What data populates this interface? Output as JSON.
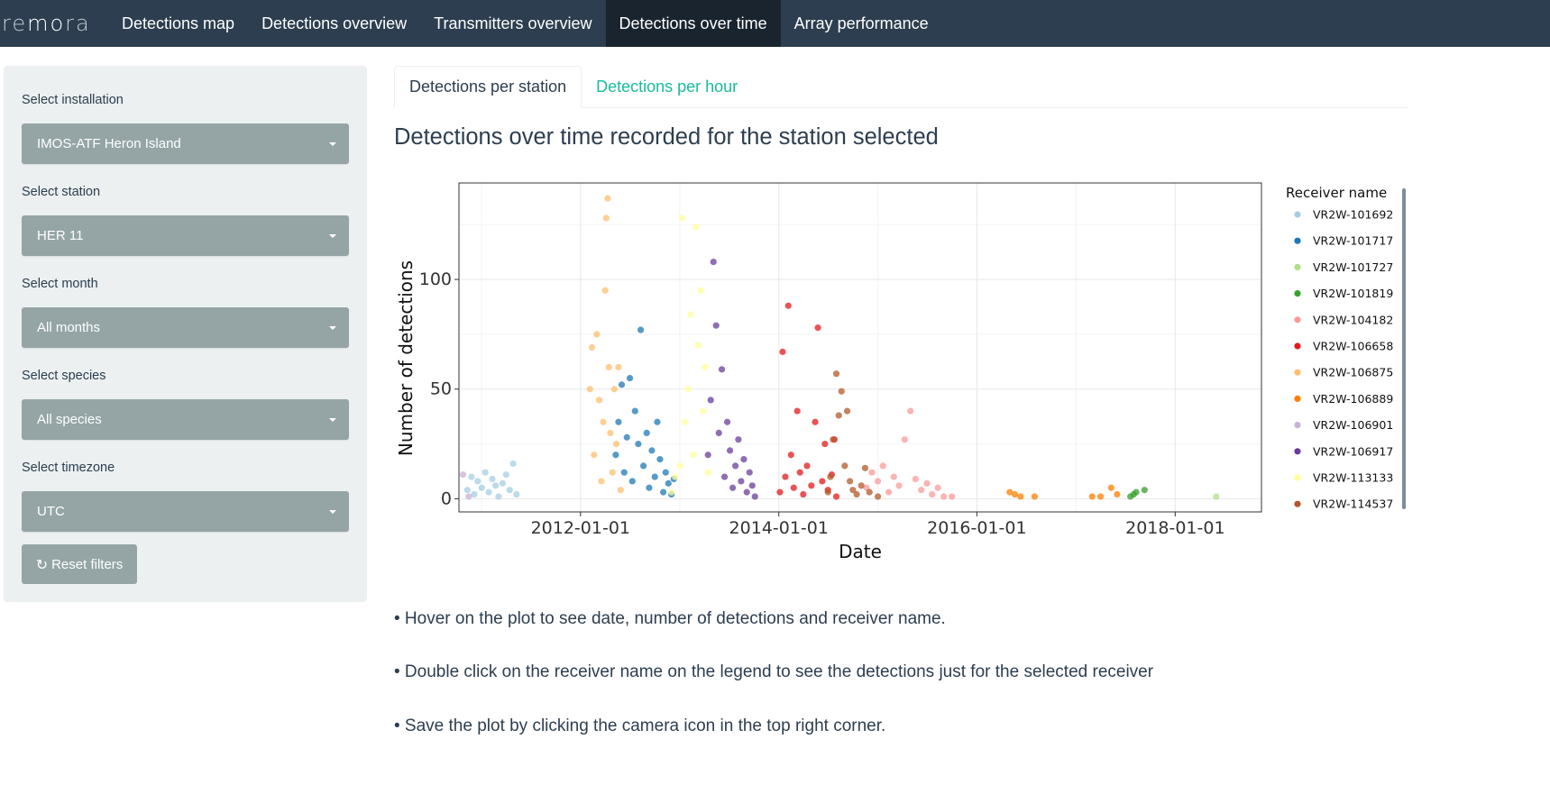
{
  "navbar": {
    "brand_light": "re",
    "brand_bold": "mo",
    "brand_tail": "ra",
    "items": [
      "Detections map",
      "Detections overview",
      "Transmitters overview",
      "Detections over time",
      "Array performance"
    ],
    "active_index": 3
  },
  "sidebar": {
    "fields": [
      {
        "label": "Select installation",
        "value": "IMOS-ATF Heron Island"
      },
      {
        "label": "Select station",
        "value": "HER 11"
      },
      {
        "label": "Select month",
        "value": "All months"
      },
      {
        "label": "Select species",
        "value": "All species"
      },
      {
        "label": "Select timezone",
        "value": "UTC"
      }
    ],
    "reset_label": "Reset filters",
    "reset_icon": "refresh-icon"
  },
  "tabs": [
    {
      "label": "Detections per station",
      "active": true
    },
    {
      "label": "Detections per hour",
      "active": false
    }
  ],
  "page_title": "Detections over time recorded for the station selected",
  "notes": [
    "• Hover on the plot to see date, number of detections and receiver name.",
    "• Double click on the receiver name on the legend to see the detections just for the selected receiver",
    "• Save the plot by clicking the camera icon in the top right corner."
  ],
  "colors": {
    "navbar": "#2c3e50",
    "active_nav": "#1a242f",
    "accent": "#18bc9c",
    "select": "#95a5a6"
  },
  "chart_data": {
    "type": "scatter",
    "xlabel": "Date",
    "ylabel": "Number of detections",
    "x_ticks": [
      "2012-01-01",
      "2014-01-01",
      "2016-01-01",
      "2018-01-01"
    ],
    "y_ticks": [
      0,
      50,
      100
    ],
    "xlim": [
      "2010-10-10",
      "2018-11-15"
    ],
    "ylim": [
      -6,
      144
    ],
    "grid": true,
    "legend_title": "Receiver name",
    "legend_position": "right",
    "series": [
      {
        "name": "VR2W-101692",
        "color": "#a6cee3",
        "points": [
          [
            "2010-11-10",
            4
          ],
          [
            "2010-11-25",
            10
          ],
          [
            "2010-12-05",
            2
          ],
          [
            "2010-12-18",
            8
          ],
          [
            "2011-01-02",
            5
          ],
          [
            "2011-01-15",
            12
          ],
          [
            "2011-01-28",
            3
          ],
          [
            "2011-02-10",
            9
          ],
          [
            "2011-02-22",
            6
          ],
          [
            "2011-03-05",
            1
          ],
          [
            "2011-03-20",
            7
          ],
          [
            "2011-04-02",
            11
          ],
          [
            "2011-04-15",
            4
          ],
          [
            "2011-04-28",
            16
          ],
          [
            "2011-05-10",
            2
          ]
        ]
      },
      {
        "name": "VR2W-101717",
        "color": "#1f78b4",
        "points": [
          [
            "2012-05-10",
            20
          ],
          [
            "2012-05-20",
            35
          ],
          [
            "2012-06-01",
            52
          ],
          [
            "2012-06-10",
            12
          ],
          [
            "2012-06-20",
            28
          ],
          [
            "2012-07-01",
            55
          ],
          [
            "2012-07-10",
            8
          ],
          [
            "2012-07-20",
            40
          ],
          [
            "2012-08-01",
            25
          ],
          [
            "2012-08-10",
            77
          ],
          [
            "2012-08-20",
            15
          ],
          [
            "2012-09-01",
            30
          ],
          [
            "2012-09-10",
            5
          ],
          [
            "2012-09-20",
            22
          ],
          [
            "2012-10-01",
            10
          ],
          [
            "2012-10-10",
            35
          ],
          [
            "2012-10-20",
            18
          ],
          [
            "2012-11-01",
            3
          ],
          [
            "2012-11-10",
            12
          ],
          [
            "2012-11-20",
            7
          ],
          [
            "2012-12-01",
            2
          ],
          [
            "2012-12-10",
            9
          ]
        ]
      },
      {
        "name": "VR2W-101727",
        "color": "#b2df8a",
        "points": [
          [
            "2018-06-01",
            1
          ]
        ]
      },
      {
        "name": "VR2W-101819",
        "color": "#33a02c",
        "points": [
          [
            "2017-07-20",
            1
          ],
          [
            "2017-08-01",
            2
          ],
          [
            "2017-08-10",
            3
          ],
          [
            "2017-09-10",
            4
          ]
        ]
      },
      {
        "name": "VR2W-104182",
        "color": "#fb9a99",
        "points": [
          [
            "2014-11-20",
            5
          ],
          [
            "2014-12-10",
            12
          ],
          [
            "2015-01-01",
            8
          ],
          [
            "2015-01-20",
            15
          ],
          [
            "2015-02-10",
            3
          ],
          [
            "2015-03-01",
            10
          ],
          [
            "2015-03-20",
            6
          ],
          [
            "2015-04-10",
            27
          ],
          [
            "2015-05-01",
            40
          ],
          [
            "2015-05-20",
            9
          ],
          [
            "2015-06-10",
            4
          ],
          [
            "2015-07-01",
            7
          ],
          [
            "2015-07-20",
            2
          ],
          [
            "2015-08-10",
            5
          ],
          [
            "2015-09-01",
            1
          ],
          [
            "2015-10-01",
            1
          ]
        ]
      },
      {
        "name": "VR2W-106658",
        "color": "#e31a1c",
        "points": [
          [
            "2014-01-05",
            3
          ],
          [
            "2014-01-15",
            67
          ],
          [
            "2014-01-25",
            10
          ],
          [
            "2014-02-05",
            88
          ],
          [
            "2014-02-15",
            20
          ],
          [
            "2014-02-25",
            5
          ],
          [
            "2014-03-10",
            40
          ],
          [
            "2014-03-20",
            12
          ],
          [
            "2014-04-01",
            2
          ],
          [
            "2014-04-15",
            15
          ],
          [
            "2014-05-01",
            6
          ],
          [
            "2014-05-15",
            35
          ],
          [
            "2014-05-25",
            78
          ],
          [
            "2014-06-10",
            8
          ],
          [
            "2014-06-20",
            25
          ],
          [
            "2014-07-01",
            4
          ],
          [
            "2014-07-15",
            11
          ],
          [
            "2014-07-25",
            27
          ],
          [
            "2014-08-01",
            1
          ]
        ]
      },
      {
        "name": "VR2W-106875",
        "color": "#fdbf6f",
        "points": [
          [
            "2012-02-05",
            50
          ],
          [
            "2012-02-12",
            69
          ],
          [
            "2012-02-20",
            20
          ],
          [
            "2012-03-01",
            75
          ],
          [
            "2012-03-10",
            45
          ],
          [
            "2012-03-18",
            8
          ],
          [
            "2012-03-25",
            35
          ],
          [
            "2012-04-01",
            95
          ],
          [
            "2012-04-05",
            128
          ],
          [
            "2012-04-10",
            137
          ],
          [
            "2012-04-15",
            60
          ],
          [
            "2012-04-20",
            30
          ],
          [
            "2012-04-28",
            12
          ],
          [
            "2012-05-05",
            50
          ],
          [
            "2012-05-12",
            25
          ],
          [
            "2012-05-20",
            60
          ],
          [
            "2012-05-28",
            4
          ]
        ]
      },
      {
        "name": "VR2W-106889",
        "color": "#ff7f00",
        "points": [
          [
            "2016-05-01",
            3
          ],
          [
            "2016-05-20",
            2
          ],
          [
            "2016-06-10",
            1
          ],
          [
            "2016-08-01",
            1
          ],
          [
            "2017-03-01",
            1
          ],
          [
            "2017-04-01",
            1
          ],
          [
            "2017-05-10",
            5
          ],
          [
            "2017-06-01",
            2
          ]
        ]
      },
      {
        "name": "VR2W-106901",
        "color": "#cab2d6",
        "points": [
          [
            "2010-10-25",
            11
          ],
          [
            "2010-11-15",
            1
          ]
        ]
      },
      {
        "name": "VR2W-106917",
        "color": "#6a3d9a",
        "points": [
          [
            "2013-04-15",
            20
          ],
          [
            "2013-04-25",
            45
          ],
          [
            "2013-05-05",
            108
          ],
          [
            "2013-05-15",
            79
          ],
          [
            "2013-05-25",
            30
          ],
          [
            "2013-06-05",
            59
          ],
          [
            "2013-06-15",
            10
          ],
          [
            "2013-06-25",
            35
          ],
          [
            "2013-07-05",
            22
          ],
          [
            "2013-07-15",
            5
          ],
          [
            "2013-07-25",
            15
          ],
          [
            "2013-08-05",
            27
          ],
          [
            "2013-08-15",
            8
          ],
          [
            "2013-08-25",
            18
          ],
          [
            "2013-09-05",
            3
          ],
          [
            "2013-09-15",
            12
          ],
          [
            "2013-09-25",
            6
          ],
          [
            "2013-10-05",
            1
          ]
        ]
      },
      {
        "name": "VR2W-113133",
        "color": "#ffff99",
        "points": [
          [
            "2012-12-01",
            3
          ],
          [
            "2012-12-15",
            10
          ],
          [
            "2013-01-01",
            15
          ],
          [
            "2013-01-10",
            128
          ],
          [
            "2013-01-20",
            35
          ],
          [
            "2013-02-01",
            50
          ],
          [
            "2013-02-10",
            84
          ],
          [
            "2013-02-20",
            20
          ],
          [
            "2013-03-01",
            124
          ],
          [
            "2013-03-10",
            70
          ],
          [
            "2013-03-20",
            95
          ],
          [
            "2013-03-28",
            40
          ],
          [
            "2013-04-05",
            60
          ],
          [
            "2013-04-15",
            12
          ]
        ]
      },
      {
        "name": "VR2W-114537",
        "color": "#b15928",
        "points": [
          [
            "2014-07-01",
            3
          ],
          [
            "2014-07-10",
            10
          ],
          [
            "2014-07-20",
            27
          ],
          [
            "2014-08-01",
            57
          ],
          [
            "2014-08-10",
            38
          ],
          [
            "2014-08-20",
            49
          ],
          [
            "2014-09-01",
            15
          ],
          [
            "2014-09-10",
            40
          ],
          [
            "2014-09-20",
            8
          ],
          [
            "2014-10-01",
            4
          ],
          [
            "2014-10-15",
            2
          ],
          [
            "2014-11-01",
            6
          ],
          [
            "2014-11-15",
            14
          ],
          [
            "2014-12-01",
            3
          ],
          [
            "2015-01-01",
            1
          ]
        ]
      }
    ]
  }
}
